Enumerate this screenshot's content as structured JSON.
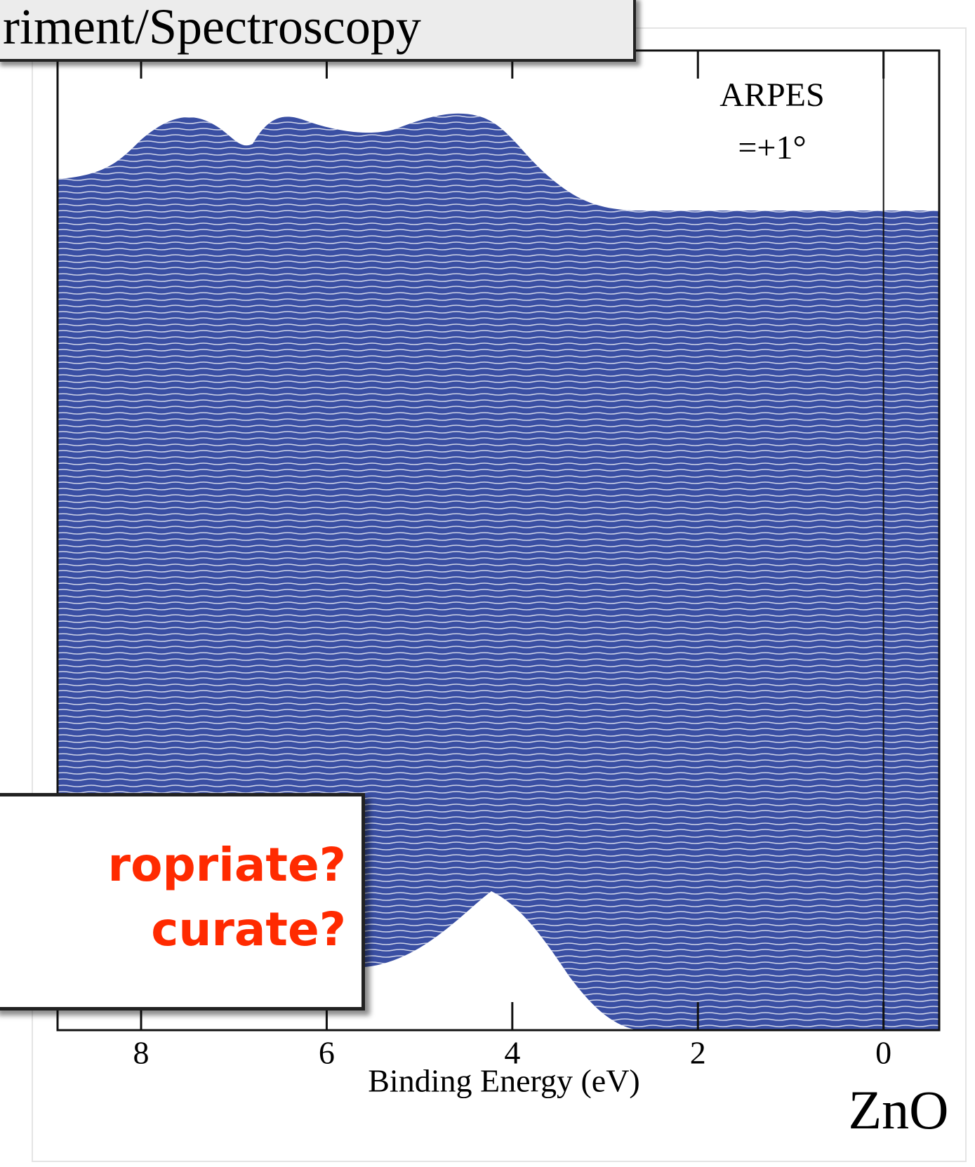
{
  "slide": {
    "title": "riment/Spectroscopy",
    "callout": [
      "ropriate?",
      "curate?"
    ],
    "material": "ZnO"
  },
  "chart_data": {
    "type": "waterfall",
    "annotation": [
      "ARPES",
      "=+1°"
    ],
    "x_label": "Binding Energy (eV)",
    "xlim": [
      8.9,
      -0.6
    ],
    "xticks": [
      8,
      6,
      4,
      2,
      0
    ],
    "color": "#3a4fa3"
  }
}
